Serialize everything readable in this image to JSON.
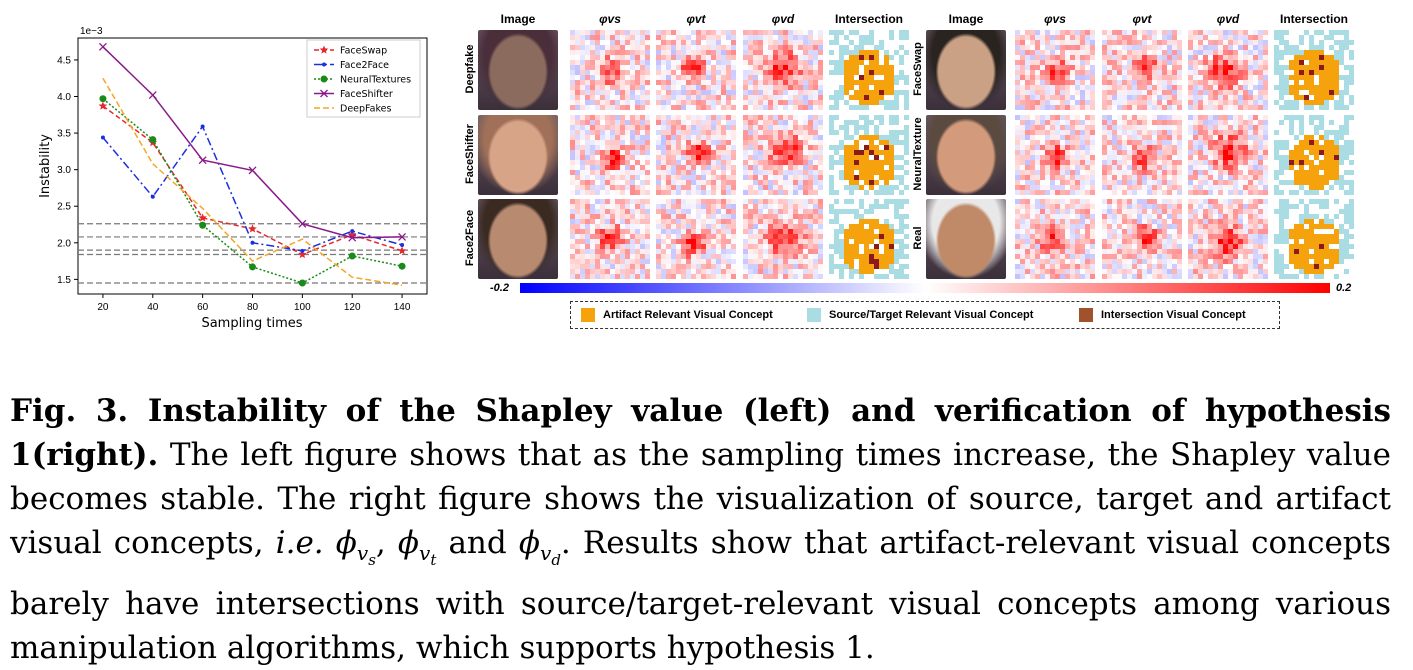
{
  "chart_data": {
    "type": "line",
    "x": [
      20,
      40,
      60,
      80,
      100,
      120,
      140
    ],
    "xlabel": "Sampling times",
    "ylabel": "Instability",
    "scale_label": "1e−3",
    "xlim": [
      10,
      150
    ],
    "ylim": [
      1.3,
      4.8
    ],
    "xticks": [
      "20",
      "40",
      "60",
      "80",
      "100",
      "120",
      "140"
    ],
    "yticks": [
      "1.5",
      "2.0",
      "2.5",
      "3.0",
      "3.5",
      "4.0",
      "4.5"
    ],
    "ytick_values": [
      1.5,
      2.0,
      2.5,
      3.0,
      3.5,
      4.0,
      4.5
    ],
    "hlines": [
      2.26,
      2.08,
      1.9,
      1.84,
      1.45
    ],
    "legend_position": "top-right",
    "series": [
      {
        "name": "FaceSwap",
        "color": "#e8262b",
        "dash": "5,3",
        "marker": "star",
        "values": [
          3.87,
          3.37,
          2.34,
          2.19,
          1.84,
          2.11,
          1.89
        ]
      },
      {
        "name": "Face2Face",
        "color": "#1a2fe0",
        "dash": "8,3,2,3",
        "marker": "dot",
        "values": [
          3.44,
          2.63,
          3.59,
          2.0,
          1.89,
          2.16,
          1.97
        ]
      },
      {
        "name": "NeuralTextures",
        "color": "#1a8a1a",
        "dash": "2,2",
        "marker": "circle",
        "values": [
          3.97,
          3.41,
          2.24,
          1.67,
          1.45,
          1.82,
          1.68
        ]
      },
      {
        "name": "FaceShifter",
        "color": "#8a1a8a",
        "dash": "",
        "marker": "x",
        "values": [
          4.68,
          4.02,
          3.13,
          2.99,
          2.26,
          2.07,
          2.08
        ]
      },
      {
        "name": "DeepFakes",
        "color": "#f5a623",
        "dash": "6,3",
        "marker": "none",
        "values": [
          4.25,
          3.08,
          2.47,
          1.75,
          2.05,
          1.53,
          1.42
        ]
      }
    ]
  },
  "right_panel": {
    "headers": [
      "Image",
      "φvs",
      "φvt",
      "φvd",
      "Intersection",
      "Image",
      "φvs",
      "φvt",
      "φvd",
      "Intersection"
    ],
    "row_labels_left": [
      "Deepfake",
      "FaceShifter",
      "Face2Face"
    ],
    "row_labels_right": [
      "FaceSwap",
      "NeuralTexture",
      "Real"
    ],
    "colorbar_min": "-0.2",
    "colorbar_max": "0.2",
    "legend": [
      {
        "label": "Artifact Relevant Visual Concept",
        "color": "#f5a20c"
      },
      {
        "label": "Source/Target Relevant Visual Concept",
        "color": "#a9dce3"
      },
      {
        "label": "Intersection Visual Concept",
        "color": "#a0522d"
      }
    ]
  },
  "caption": {
    "fig_label": "Fig. 3. Instability of the Shapley value (left) and verification of hypothesis 1(right).",
    "text1": "The left figure shows that as the sampling times increase, the Shapley value becomes stable. The right figure shows the visualization of source, target and artifact visual concepts,",
    "ie": "i.e.",
    "phi_s": "ϕ",
    "sub_s": "v",
    "subsub_s": "s",
    "phi_t": "ϕ",
    "sub_t": "v",
    "subsub_t": "t",
    "and_word": "and",
    "phi_d": "ϕ",
    "sub_d": "v",
    "subsub_d": "d",
    "text2": ". Results show that artifact-relevant visual concepts barely have intersections with source/target-relevant visual concepts among various manipulation algorithms, which supports hypothesis 1."
  }
}
